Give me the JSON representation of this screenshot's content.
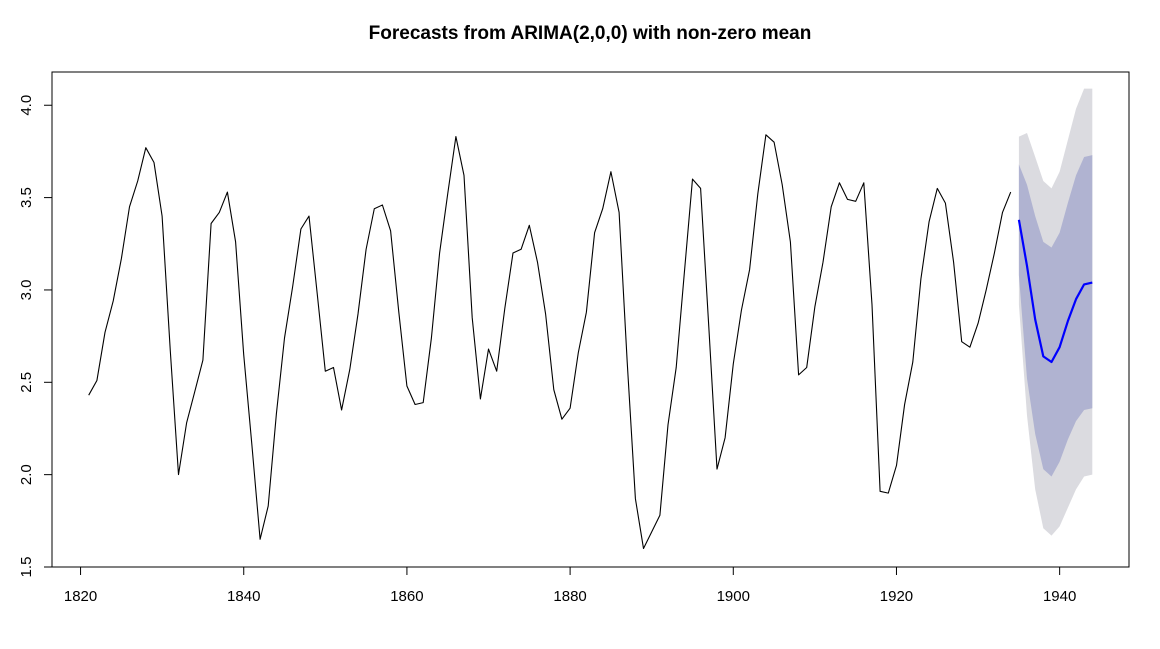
{
  "chart_data": {
    "type": "line",
    "title": "Forecasts from ARIMA(2,0,0) with non-zero mean",
    "xlabel": "",
    "ylabel": "",
    "xlim": [
      1816.5,
      1948.5
    ],
    "ylim": [
      1.5,
      4.18
    ],
    "x_ticks": [
      1820,
      1840,
      1860,
      1880,
      1900,
      1920,
      1940
    ],
    "y_ticks": [
      1.5,
      2.0,
      2.5,
      3.0,
      3.5,
      4.0
    ],
    "x_tick_labels": [
      "1820",
      "1840",
      "1860",
      "1880",
      "1900",
      "1920",
      "1940"
    ],
    "y_tick_labels": [
      "1.5",
      "2.0",
      "2.5",
      "3.0",
      "3.5",
      "4.0"
    ],
    "grid": false,
    "colors": {
      "series": "#000000",
      "forecast": "#0000ff",
      "interval_80": "#b0b3d1",
      "interval_95": "#dbdbe0"
    },
    "series": [
      {
        "name": "observed",
        "x_start": 1821,
        "values": [
          2.43,
          2.51,
          2.77,
          2.94,
          3.17,
          3.45,
          3.59,
          3.77,
          3.69,
          3.4,
          2.67,
          2.0,
          2.28,
          2.45,
          2.62,
          3.36,
          3.42,
          3.53,
          3.26,
          2.65,
          2.16,
          1.65,
          1.83,
          2.33,
          2.74,
          3.02,
          3.33,
          3.4,
          2.98,
          2.56,
          2.58,
          2.35,
          2.57,
          2.87,
          3.22,
          3.44,
          3.46,
          3.32,
          2.88,
          2.48,
          2.38,
          2.39,
          2.74,
          3.2,
          3.52,
          3.83,
          3.62,
          2.85,
          2.41,
          2.68,
          2.56,
          2.9,
          3.2,
          3.22,
          3.35,
          3.15,
          2.87,
          2.46,
          2.3,
          2.36,
          2.66,
          2.88,
          3.31,
          3.44,
          3.64,
          3.42,
          2.61,
          1.87,
          1.6,
          1.69,
          1.78,
          2.27,
          2.58,
          3.09,
          3.6,
          3.55,
          2.8,
          2.03,
          2.2,
          2.6,
          2.89,
          3.11,
          3.52,
          3.84,
          3.8,
          3.57,
          3.26,
          2.54,
          2.58,
          2.91,
          3.15,
          3.45,
          3.58,
          3.49,
          3.48,
          3.58,
          2.92,
          1.91,
          1.9,
          2.05,
          2.38,
          2.61,
          3.06,
          3.37,
          3.55,
          3.47,
          3.15,
          2.72,
          2.69,
          2.82,
          3.0,
          3.2,
          3.42,
          3.53
        ]
      },
      {
        "name": "forecast",
        "x_start": 1935,
        "values": [
          3.38,
          3.13,
          2.84,
          2.64,
          2.61,
          2.69,
          2.83,
          2.95,
          3.03,
          3.04
        ],
        "lo80": [
          3.08,
          2.52,
          2.22,
          2.03,
          1.99,
          2.07,
          2.19,
          2.29,
          2.35,
          2.36
        ],
        "hi80": [
          3.68,
          3.57,
          3.4,
          3.26,
          3.23,
          3.31,
          3.47,
          3.62,
          3.72,
          3.73
        ],
        "lo95": [
          2.92,
          2.32,
          1.92,
          1.71,
          1.67,
          1.72,
          1.82,
          1.92,
          1.99,
          2.0
        ],
        "hi95": [
          3.83,
          3.85,
          3.72,
          3.59,
          3.55,
          3.64,
          3.81,
          3.98,
          4.09,
          4.09
        ]
      }
    ]
  }
}
